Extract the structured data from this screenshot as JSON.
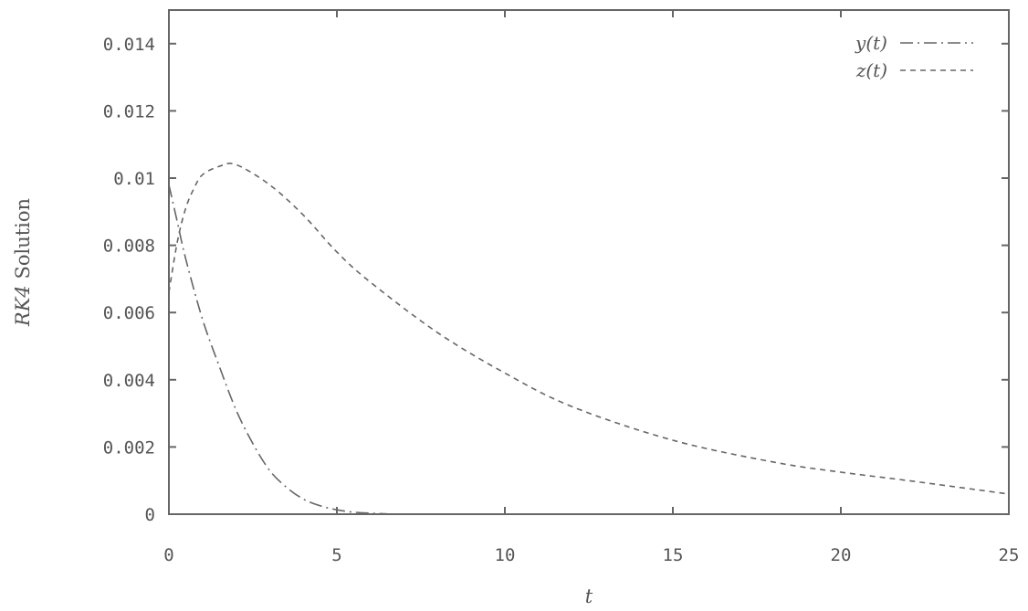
{
  "chart_data": {
    "type": "line",
    "xlabel": "t",
    "ylabel": "RK4 Solution",
    "ylabel_parts": {
      "italic": "RK4",
      "rest": " Solution"
    },
    "xlim": [
      0,
      25
    ],
    "ylim": [
      0,
      0.015
    ],
    "x_ticks": [
      0,
      5,
      10,
      15,
      20,
      25
    ],
    "x_tick_labels": [
      "0",
      "5",
      "10",
      "15",
      "20",
      "25"
    ],
    "y_ticks": [
      0,
      0.002,
      0.004,
      0.006,
      0.008,
      0.01,
      0.012,
      0.014
    ],
    "y_tick_labels": [
      "0",
      "0.002",
      "0.004",
      "0.006",
      "0.008",
      "0.01",
      "0.012",
      "0.014"
    ],
    "grid": false,
    "legend_position": "top-right",
    "series": [
      {
        "name": "y(t)",
        "style": "dash-dot",
        "color": "#666666",
        "x": [
          0,
          0.25,
          0.5,
          1,
          1.5,
          2,
          2.5,
          3,
          3.5,
          4,
          4.5,
          5,
          5.5,
          6,
          6.5
        ],
        "y": [
          0.0098,
          0.0087,
          0.0076,
          0.0058,
          0.0044,
          0.0031,
          0.0021,
          0.0013,
          0.0008,
          0.00045,
          0.00025,
          0.00013,
          6e-05,
          3e-05,
          1e-05
        ]
      },
      {
        "name": "z(t)",
        "style": "dashed",
        "color": "#666666",
        "x": [
          0,
          0.25,
          0.5,
          0.75,
          1,
          1.5,
          2,
          3,
          4,
          5,
          6,
          8,
          10,
          12,
          15,
          18,
          20,
          22,
          25
        ],
        "y": [
          0.0066,
          0.0081,
          0.0091,
          0.0097,
          0.0101,
          0.01035,
          0.0104,
          0.0098,
          0.0089,
          0.0078,
          0.0069,
          0.0054,
          0.0042,
          0.0032,
          0.0022,
          0.00155,
          0.00125,
          0.001,
          0.0006
        ]
      }
    ]
  }
}
